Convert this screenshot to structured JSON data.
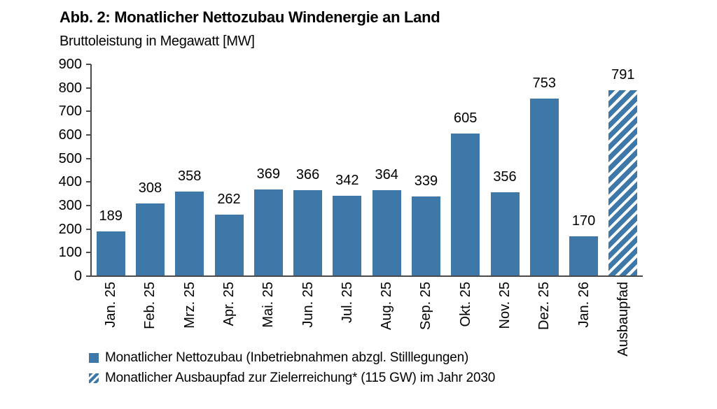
{
  "header": {
    "title": "Abb. 2: Monatlicher Nettozubau Windenergie an Land",
    "subtitle": "Bruttoleistung in Megawatt [MW]"
  },
  "legend": {
    "items": [
      {
        "label": "Monatlicher Nettozubau (Inbetriebnahmen abzgl. Stilllegungen)",
        "style": "solid"
      },
      {
        "label": "Monatlicher Ausbaupfad zur Zielerreichung* (115 GW) im Jahr 2030",
        "style": "hatched"
      }
    ]
  },
  "chart_data": {
    "type": "bar",
    "title": "Abb. 2: Monatlicher Nettozubau Windenergie an Land",
    "subtitle": "Bruttoleistung in Megawatt [MW]",
    "categories": [
      "Jan. 25",
      "Feb. 25",
      "Mrz. 25",
      "Apr. 25",
      "Mai. 25",
      "Jun. 25",
      "Jul. 25",
      "Aug. 25",
      "Sep. 25",
      "Okt. 25",
      "Nov. 25",
      "Dez. 25",
      "Jan. 26",
      "Ausbaupfad"
    ],
    "values": [
      189,
      308,
      358,
      262,
      369,
      366,
      342,
      364,
      339,
      605,
      356,
      753,
      170,
      791
    ],
    "hatched": [
      false,
      false,
      false,
      false,
      false,
      false,
      false,
      false,
      false,
      false,
      false,
      false,
      false,
      true
    ],
    "data_labels_shown": true,
    "xlabel": "",
    "ylabel": "Bruttoleistung in Megawatt [MW]",
    "ylim": [
      0,
      900
    ],
    "ytick_step": 100,
    "grid": false,
    "legend_position": "bottom-left",
    "colors": {
      "bar_solid": "#3d78a8",
      "bar_hatch_stripe": "#3d78a8",
      "bar_hatch_bg": "#ffffff",
      "axis": "#4a4a4a",
      "text": "#000000",
      "background": "#ffffff"
    }
  }
}
